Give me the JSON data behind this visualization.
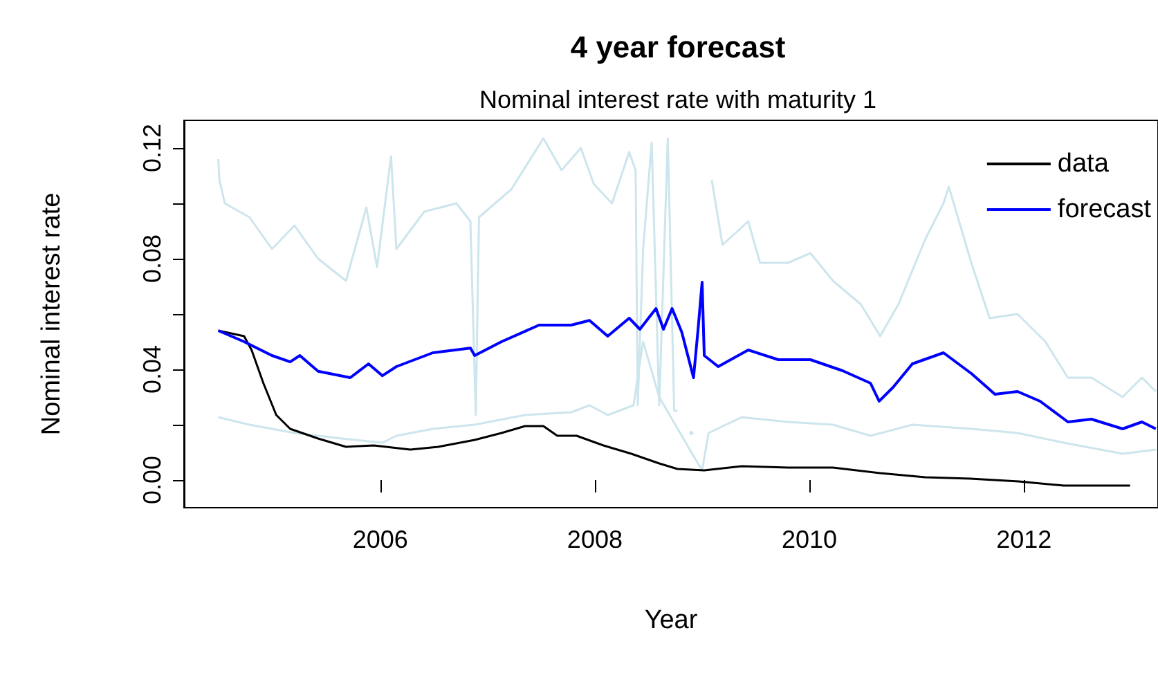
{
  "chart_data": {
    "type": "line",
    "title": "4 year forecast",
    "subtitle": "Nominal interest rate with maturity 1",
    "xlabel": "Year",
    "ylabel": "Nominal interest rate",
    "xlim": [
      2004.17,
      2013.25
    ],
    "xticks": [
      2006,
      2008,
      2010,
      2012
    ],
    "ylim": [
      -0.01,
      0.13
    ],
    "yticks": [
      {
        "value": 0,
        "label": "0.00"
      },
      {
        "value": 0.02,
        "label": null
      },
      {
        "value": 0.04,
        "label": "0.04"
      },
      {
        "value": 0.06,
        "label": null
      },
      {
        "value": 0.08,
        "label": "0.08"
      },
      {
        "value": 0.1,
        "label": null
      },
      {
        "value": 0.12,
        "label": "0.12"
      }
    ],
    "grid": false,
    "legend": "top right",
    "series": [
      {
        "color": "#cde5ec",
        "x": [
          2004.49,
          2004.5,
          2004.55,
          2004.78,
          2004.99,
          2005.2,
          2005.42,
          2005.68,
          2005.87,
          2005.97,
          2006.1,
          2006.15,
          2006.41,
          2006.71,
          2006.84,
          2006.89,
          2006.92,
          2007.22,
          2007.52,
          2007.69,
          2007.87,
          2007.99,
          2008.16,
          2008.32,
          2008.38,
          2008.4,
          2008.45,
          2008.53,
          2008.6,
          2008.68,
          2008.74,
          2008.77,
          2008.83,
          2008.9,
          2008.96,
          2009.0,
          2009.05,
          2009.09,
          2009.19,
          2009.43,
          2009.54,
          2009.8,
          2010.01,
          2010.22,
          2010.48,
          2010.66,
          2010.83,
          2011.08,
          2011.25,
          2011.3,
          2011.51,
          2011.68,
          2011.94,
          2012.2,
          2012.41,
          2012.63,
          2012.92,
          2013.1,
          2013.23
        ],
        "values": [
          0.116,
          0.1085,
          0.1,
          0.095,
          0.0835,
          0.092,
          0.08,
          0.072,
          0.0985,
          0.077,
          0.117,
          0.0835,
          0.097,
          0.1,
          0.0935,
          0.0235,
          0.095,
          0.105,
          0.1235,
          0.112,
          0.12,
          0.107,
          0.1,
          0.1185,
          0.112,
          0.027,
          0.0835,
          0.122,
          0.027,
          0.1235,
          0.025,
          0.025,
          null,
          0.017,
          null,
          null,
          null,
          0.1085,
          0.085,
          0.0935,
          0.0785,
          0.0785,
          0.082,
          0.072,
          0.0635,
          0.052,
          0.0635,
          0.087,
          0.1,
          0.106,
          0.0785,
          0.0585,
          0.06,
          0.05,
          0.037,
          0.037,
          0.03,
          0.037,
          0.032
        ]
      },
      {
        "color": "#cde5ec",
        "x": [
          2004.49,
          2004.78,
          2005.2,
          2005.64,
          2006.02,
          2006.15,
          2006.49,
          2006.88,
          2007.35,
          2007.78,
          2007.95,
          2008.12,
          2008.36,
          2008.45,
          2008.6,
          2008.75,
          2008.9,
          2009.0,
          2009.06,
          2009.37,
          2009.8,
          2010.22,
          2010.57,
          2010.96,
          2011.51,
          2011.94,
          2012.37,
          2012.92,
          2013.23
        ],
        "values": [
          0.0227,
          0.02,
          0.017,
          0.015,
          0.0135,
          0.016,
          0.0185,
          0.02,
          0.0235,
          0.0245,
          0.027,
          0.0235,
          0.027,
          0.05,
          0.03,
          0.02,
          0.01,
          0.0035,
          0.017,
          0.0227,
          0.021,
          0.02,
          0.016,
          0.02,
          0.0185,
          0.017,
          0.0135,
          0.0095,
          0.011
        ]
      },
      {
        "name": "data",
        "color": "#000000",
        "x": [
          2004.49,
          2004.73,
          2004.8,
          2004.91,
          2005.03,
          2005.16,
          2005.42,
          2005.68,
          2005.94,
          2006.28,
          2006.54,
          2006.88,
          2007.13,
          2007.35,
          2007.52,
          2007.65,
          2007.83,
          2008.08,
          2008.34,
          2008.6,
          2008.77,
          2009.02,
          2009.37,
          2009.8,
          2010.22,
          2010.66,
          2011.08,
          2011.5,
          2011.95,
          2012.37,
          2012.99
        ],
        "values": [
          0.054,
          0.052,
          0.047,
          0.035,
          0.0235,
          0.0185,
          0.015,
          0.012,
          0.0125,
          0.011,
          0.012,
          0.0145,
          0.017,
          0.0195,
          0.0195,
          0.016,
          0.016,
          0.0125,
          0.0095,
          0.006,
          0.004,
          0.0035,
          0.005,
          0.0045,
          0.0045,
          0.0025,
          0.001,
          0.0005,
          -0.0005,
          -0.002,
          -0.002
        ]
      },
      {
        "name": "forecast",
        "color": "#0000ff",
        "x": [
          2004.49,
          2004.73,
          2004.99,
          2005.16,
          2005.25,
          2005.42,
          2005.72,
          2005.89,
          2006.02,
          2006.15,
          2006.49,
          2006.84,
          2006.88,
          2007.13,
          2007.48,
          2007.78,
          2007.95,
          2008.12,
          2008.32,
          2008.42,
          2008.57,
          2008.64,
          2008.72,
          2008.81,
          2008.92,
          2008.96,
          2009.0,
          2009.02,
          2009.15,
          2009.43,
          2009.71,
          2010.01,
          2010.31,
          2010.57,
          2010.65,
          2010.78,
          2010.96,
          2011.25,
          2011.51,
          2011.73,
          2011.94,
          2012.15,
          2012.41,
          2012.63,
          2012.92,
          2013.1,
          2013.23
        ],
        "values": [
          0.054,
          0.05,
          0.045,
          0.0427,
          0.045,
          0.0393,
          0.037,
          0.042,
          0.0377,
          0.041,
          0.046,
          0.0477,
          0.045,
          0.05,
          0.056,
          0.056,
          0.0577,
          0.052,
          0.0585,
          0.0545,
          0.062,
          0.0545,
          0.062,
          0.0535,
          0.037,
          0.0535,
          0.0715,
          0.045,
          0.041,
          0.047,
          0.0435,
          0.0435,
          0.0395,
          0.035,
          0.0285,
          0.0335,
          0.042,
          0.046,
          0.0385,
          0.031,
          0.032,
          0.0285,
          0.021,
          0.022,
          0.0185,
          0.021,
          0.0185
        ]
      }
    ]
  }
}
